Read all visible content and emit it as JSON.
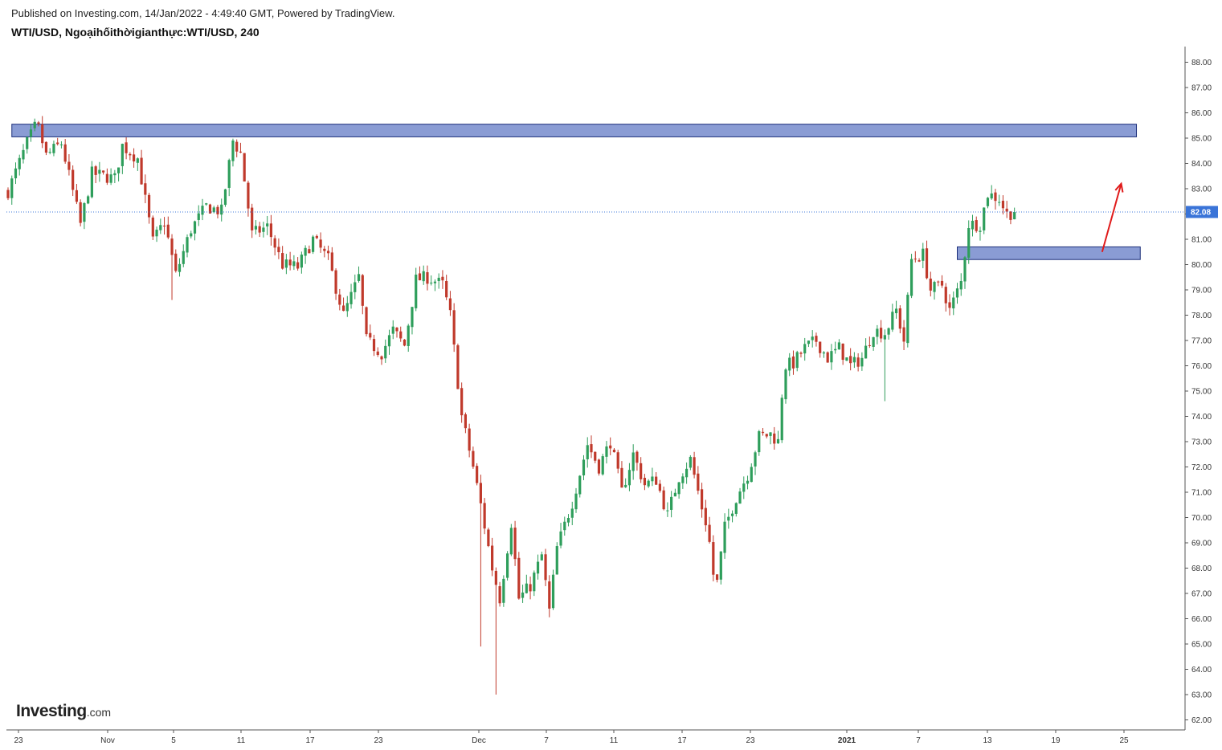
{
  "header": {
    "published": "Published on Investing.com, 14/Jan/2022 - 4:49:40 GMT, Powered by TradingView.",
    "symbol_line": "WTI/USD, Ngoạihốithờigianthực:WTI/USD, 240"
  },
  "logo": {
    "main": "Investing",
    "suffix": ".com"
  },
  "colors": {
    "up_candle": "#2e9e5b",
    "down_candle": "#c0392b",
    "zone_fill": "#8a9cd4",
    "zone_stroke": "#1c2f7a",
    "arrow": "#e01b1b",
    "price_tag": "#3a74d8",
    "last_price_line": "#3a74d8"
  },
  "chart_data": {
    "type": "candlestick",
    "title": "WTI/USD, Ngoạihốithờigianthực:WTI/USD, 240",
    "timeframe": "240",
    "y_axis": {
      "side": "right",
      "ylim": [
        61.7,
        88.5
      ],
      "ticks": [
        "62.00",
        "63.00",
        "64.00",
        "65.00",
        "66.00",
        "67.00",
        "68.00",
        "69.00",
        "70.00",
        "71.00",
        "72.00",
        "73.00",
        "74.00",
        "75.00",
        "76.00",
        "77.00",
        "78.00",
        "79.00",
        "80.00",
        "81.00",
        "82.00",
        "83.00",
        "84.00",
        "85.00",
        "86.00",
        "87.00",
        "88.00"
      ]
    },
    "x_axis": {
      "ticks": [
        {
          "label": "23",
          "bold": false
        },
        {
          "label": "Nov",
          "bold": false
        },
        {
          "label": "5",
          "bold": false
        },
        {
          "label": "11",
          "bold": false
        },
        {
          "label": "17",
          "bold": false
        },
        {
          "label": "23",
          "bold": false
        },
        {
          "label": "Dec",
          "bold": false
        },
        {
          "label": "7",
          "bold": false
        },
        {
          "label": "11",
          "bold": false
        },
        {
          "label": "17",
          "bold": false
        },
        {
          "label": "23",
          "bold": false
        },
        {
          "label": "2021",
          "bold": true
        },
        {
          "label": "7",
          "bold": false
        },
        {
          "label": "13",
          "bold": false
        },
        {
          "label": "19",
          "bold": false
        },
        {
          "label": "25",
          "bold": false
        }
      ]
    },
    "last_price": 82.08,
    "last_price_label": "82.08",
    "close_path": [
      {
        "t": 0.0,
        "p": 82.9
      },
      {
        "t": 2.5,
        "p": 84.8
      },
      {
        "t": 3.8,
        "p": 85.6
      },
      {
        "t": 5.0,
        "p": 84.3
      },
      {
        "t": 7.0,
        "p": 84.8
      },
      {
        "t": 9.5,
        "p": 81.6
      },
      {
        "t": 11.0,
        "p": 83.6
      },
      {
        "t": 14.0,
        "p": 83.4
      },
      {
        "t": 15.0,
        "p": 84.7
      },
      {
        "t": 17.0,
        "p": 84.2
      },
      {
        "t": 19.0,
        "p": 80.9
      },
      {
        "t": 20.5,
        "p": 81.7
      },
      {
        "t": 22.0,
        "p": 79.6
      },
      {
        "t": 24.0,
        "p": 81.4
      },
      {
        "t": 26.0,
        "p": 82.3
      },
      {
        "t": 28.0,
        "p": 82.1
      },
      {
        "t": 29.5,
        "p": 84.9
      },
      {
        "t": 30.5,
        "p": 84.4
      },
      {
        "t": 32.0,
        "p": 81.2
      },
      {
        "t": 34.0,
        "p": 81.5
      },
      {
        "t": 36.0,
        "p": 80.0
      },
      {
        "t": 38.0,
        "p": 79.9
      },
      {
        "t": 40.0,
        "p": 81.0
      },
      {
        "t": 42.0,
        "p": 80.2
      },
      {
        "t": 44.0,
        "p": 78.0
      },
      {
        "t": 46.0,
        "p": 79.5
      },
      {
        "t": 47.0,
        "p": 77.0
      },
      {
        "t": 49.0,
        "p": 76.5
      },
      {
        "t": 50.5,
        "p": 77.4
      },
      {
        "t": 52.0,
        "p": 76.8
      },
      {
        "t": 53.5,
        "p": 79.4
      },
      {
        "t": 55.0,
        "p": 79.5
      },
      {
        "t": 57.0,
        "p": 79.2
      },
      {
        "t": 58.0,
        "p": 78.0
      },
      {
        "t": 59.5,
        "p": 74.0
      },
      {
        "t": 61.0,
        "p": 72.0
      },
      {
        "t": 62.0,
        "p": 70.5
      },
      {
        "t": 63.5,
        "p": 68.0
      },
      {
        "t": 64.5,
        "p": 66.8
      },
      {
        "t": 66.0,
        "p": 69.8
      },
      {
        "t": 67.0,
        "p": 66.8
      },
      {
        "t": 68.5,
        "p": 67.3
      },
      {
        "t": 70.0,
        "p": 68.5
      },
      {
        "t": 71.0,
        "p": 66.3
      },
      {
        "t": 72.0,
        "p": 68.8
      },
      {
        "t": 74.0,
        "p": 70.6
      },
      {
        "t": 76.0,
        "p": 72.9
      },
      {
        "t": 77.5,
        "p": 72.0
      },
      {
        "t": 79.0,
        "p": 73.0
      },
      {
        "t": 80.5,
        "p": 71.0
      },
      {
        "t": 82.0,
        "p": 72.5
      },
      {
        "t": 83.5,
        "p": 71.3
      },
      {
        "t": 85.0,
        "p": 71.5
      },
      {
        "t": 86.5,
        "p": 70.1
      },
      {
        "t": 88.0,
        "p": 71.6
      },
      {
        "t": 89.5,
        "p": 72.3
      },
      {
        "t": 91.0,
        "p": 70.4
      },
      {
        "t": 91.8,
        "p": 69.5
      },
      {
        "t": 92.8,
        "p": 67.0
      },
      {
        "t": 94.0,
        "p": 69.6
      },
      {
        "t": 95.5,
        "p": 70.8
      },
      {
        "t": 97.0,
        "p": 71.7
      },
      {
        "t": 98.5,
        "p": 73.2
      },
      {
        "t": 100.0,
        "p": 73.3
      },
      {
        "t": 101.0,
        "p": 73.0
      },
      {
        "t": 101.8,
        "p": 76.0
      },
      {
        "t": 103.0,
        "p": 76.1
      },
      {
        "t": 104.5,
        "p": 76.7
      },
      {
        "t": 106.0,
        "p": 77.0
      },
      {
        "t": 107.5,
        "p": 76.3
      },
      {
        "t": 109.0,
        "p": 76.7
      },
      {
        "t": 110.5,
        "p": 76.0
      },
      {
        "t": 112.0,
        "p": 76.3
      },
      {
        "t": 113.5,
        "p": 77.4
      },
      {
        "t": 115.0,
        "p": 77.3
      },
      {
        "t": 116.5,
        "p": 78.2
      },
      {
        "t": 117.5,
        "p": 77.0
      },
      {
        "t": 118.5,
        "p": 80.2
      },
      {
        "t": 120.0,
        "p": 80.4
      },
      {
        "t": 121.0,
        "p": 79.0
      },
      {
        "t": 122.5,
        "p": 79.2
      },
      {
        "t": 123.5,
        "p": 78.2
      },
      {
        "t": 125.0,
        "p": 79.3
      },
      {
        "t": 126.0,
        "p": 81.6
      },
      {
        "t": 127.5,
        "p": 81.6
      },
      {
        "t": 128.5,
        "p": 82.8
      },
      {
        "t": 130.0,
        "p": 82.6
      },
      {
        "t": 131.0,
        "p": 82.0
      },
      {
        "t": 132.0,
        "p": 82.08
      }
    ],
    "zones": [
      {
        "name": "resistance-zone-upper",
        "from_t": 0.5,
        "to_t": 148.0,
        "low": 85.05,
        "high": 85.55
      },
      {
        "name": "support-zone-lower",
        "from_t": 124.5,
        "to_t": 148.5,
        "low": 80.2,
        "high": 80.7
      }
    ],
    "arrow": {
      "from_t": 143.5,
      "from_p": 80.5,
      "to_t": 146.0,
      "to_p": 83.2
    }
  }
}
